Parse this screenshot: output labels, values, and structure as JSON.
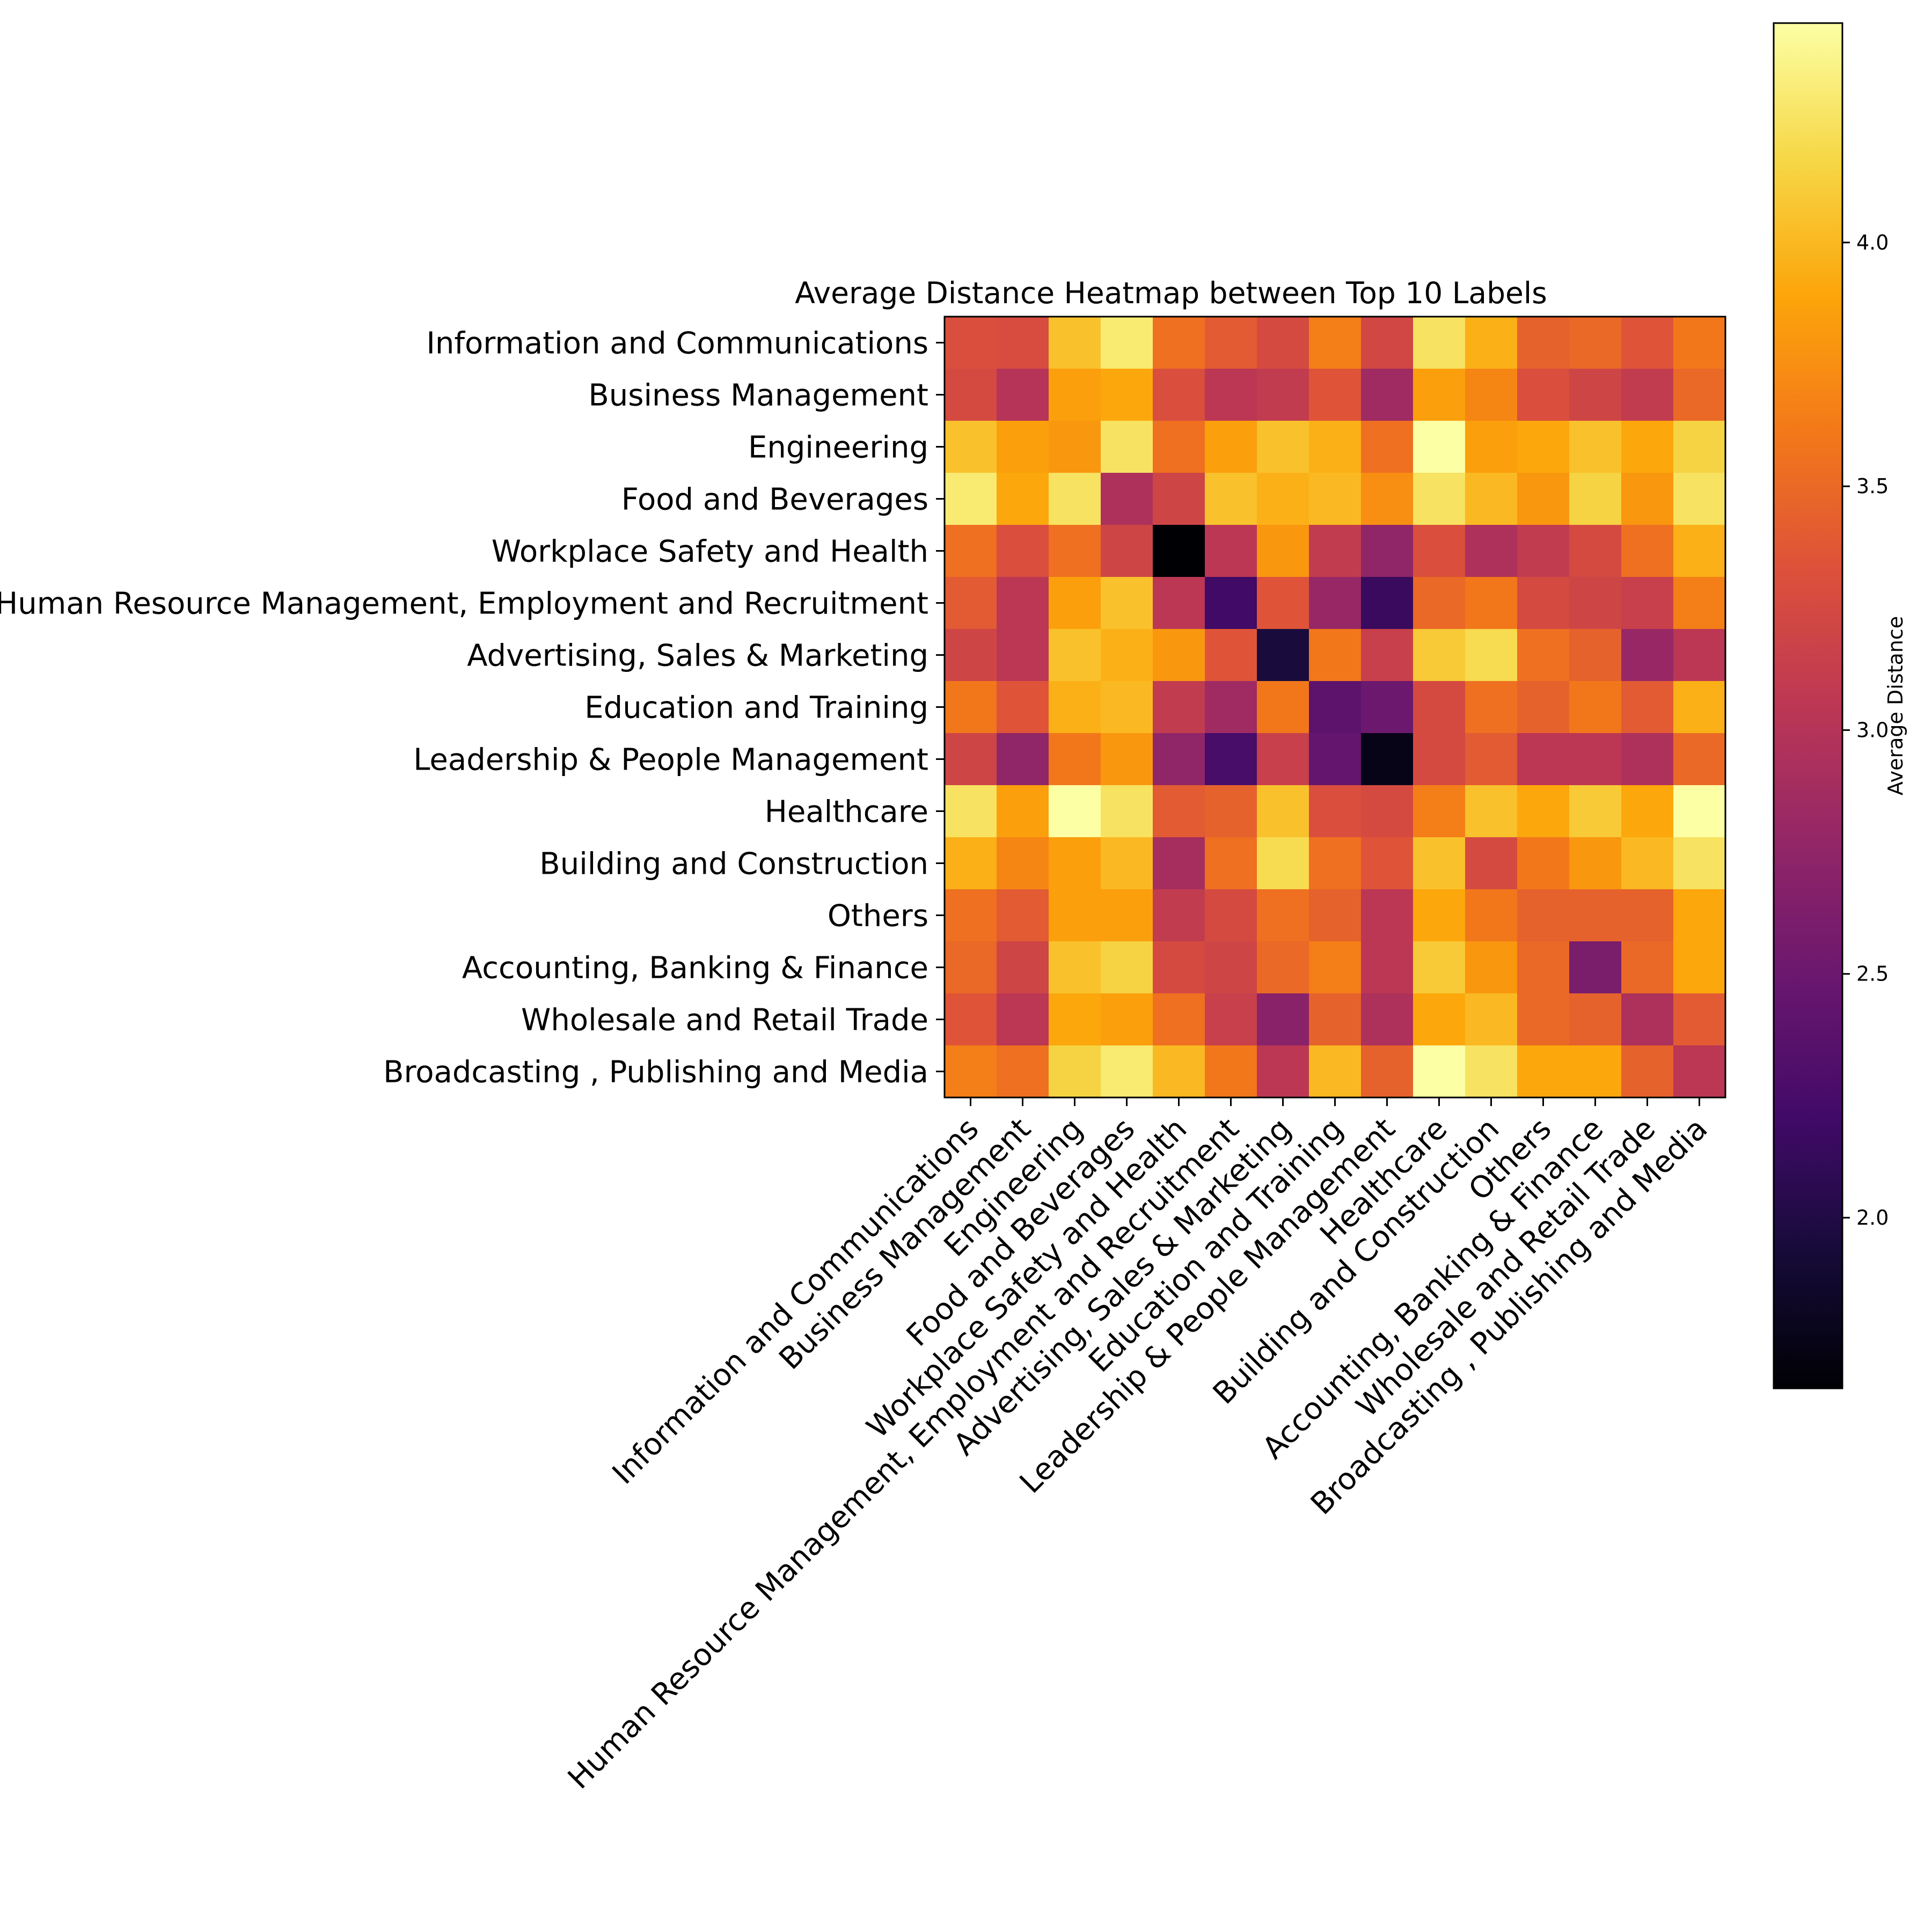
{
  "chart_data": {
    "type": "heatmap",
    "title": "Average Distance Heatmap between Top 10 Labels",
    "labels": [
      "Information and Communications",
      "Business Management",
      "Engineering",
      "Food and Beverages",
      "Workplace Safety and Health",
      "Human Resource Management, Employment and Recruitment",
      "Advertising, Sales & Marketing",
      "Education and Training",
      "Leadership & People Management",
      "Healthcare",
      "Building and Construction",
      "Others",
      "Accounting, Banking & Finance",
      "Wholesale and Retail Trade",
      "Broadcasting , Publishing and Media"
    ],
    "values": [
      [
        3.3,
        3.28,
        4.05,
        4.3,
        3.55,
        3.4,
        3.25,
        3.65,
        3.22,
        4.25,
        3.95,
        3.45,
        3.5,
        3.35,
        3.6
      ],
      [
        3.25,
        3.0,
        3.85,
        3.9,
        3.3,
        3.05,
        3.1,
        3.35,
        2.85,
        3.85,
        3.7,
        3.3,
        3.2,
        3.1,
        3.5
      ],
      [
        4.05,
        3.85,
        3.8,
        4.25,
        3.55,
        3.85,
        4.05,
        3.95,
        3.55,
        4.45,
        3.85,
        3.9,
        4.05,
        3.9,
        4.15
      ],
      [
        4.3,
        3.9,
        4.25,
        2.95,
        3.2,
        4.05,
        3.95,
        4.0,
        3.75,
        4.25,
        4.0,
        3.8,
        4.15,
        3.8,
        4.25
      ],
      [
        3.55,
        3.3,
        3.55,
        3.2,
        1.65,
        3.05,
        3.8,
        3.1,
        2.75,
        3.3,
        2.95,
        3.1,
        3.25,
        3.55,
        3.95
      ],
      [
        3.4,
        3.05,
        3.85,
        4.05,
        3.05,
        2.2,
        3.35,
        2.8,
        2.15,
        3.5,
        3.6,
        3.25,
        3.2,
        3.15,
        3.65
      ],
      [
        3.2,
        3.05,
        4.05,
        3.95,
        3.8,
        3.35,
        1.95,
        3.6,
        3.15,
        4.1,
        4.2,
        3.55,
        3.45,
        2.8,
        3.05
      ],
      [
        3.6,
        3.35,
        3.95,
        4.0,
        3.1,
        2.85,
        3.6,
        2.4,
        2.5,
        3.25,
        3.55,
        3.45,
        3.6,
        3.4,
        3.95
      ],
      [
        3.2,
        2.75,
        3.6,
        3.8,
        2.75,
        2.25,
        3.15,
        2.45,
        1.75,
        3.25,
        3.4,
        3.05,
        3.05,
        2.95,
        3.5
      ],
      [
        4.25,
        3.85,
        4.45,
        4.25,
        3.4,
        3.45,
        4.05,
        3.3,
        3.25,
        3.65,
        4.05,
        3.9,
        4.1,
        3.9,
        4.45
      ],
      [
        3.95,
        3.7,
        3.85,
        4.0,
        2.9,
        3.55,
        4.2,
        3.55,
        3.35,
        4.05,
        3.25,
        3.6,
        3.8,
        4.0,
        4.25
      ],
      [
        3.55,
        3.4,
        3.85,
        3.85,
        3.1,
        3.25,
        3.55,
        3.45,
        3.05,
        3.9,
        3.6,
        3.45,
        3.45,
        3.45,
        3.9
      ],
      [
        3.5,
        3.2,
        4.05,
        4.15,
        3.25,
        3.2,
        3.5,
        3.65,
        3.05,
        4.1,
        3.8,
        3.5,
        2.6,
        3.5,
        3.9
      ],
      [
        3.35,
        3.05,
        3.9,
        3.85,
        3.55,
        3.15,
        2.7,
        3.45,
        2.95,
        3.9,
        4.0,
        3.5,
        3.45,
        2.95,
        3.4
      ],
      [
        3.65,
        3.55,
        4.15,
        4.3,
        4.0,
        3.6,
        3.05,
        4.0,
        3.45,
        4.45,
        4.25,
        3.9,
        3.9,
        3.45,
        3.05
      ]
    ],
    "colormap": "inferno",
    "vmin": 1.65,
    "vmax": 4.45,
    "colorbar": {
      "label": "Average Distance",
      "ticks": [
        2.0,
        2.5,
        3.0,
        3.5,
        4.0
      ],
      "tick_labels": [
        "2.0",
        "2.5",
        "3.0",
        "3.5",
        "4.0"
      ]
    }
  }
}
